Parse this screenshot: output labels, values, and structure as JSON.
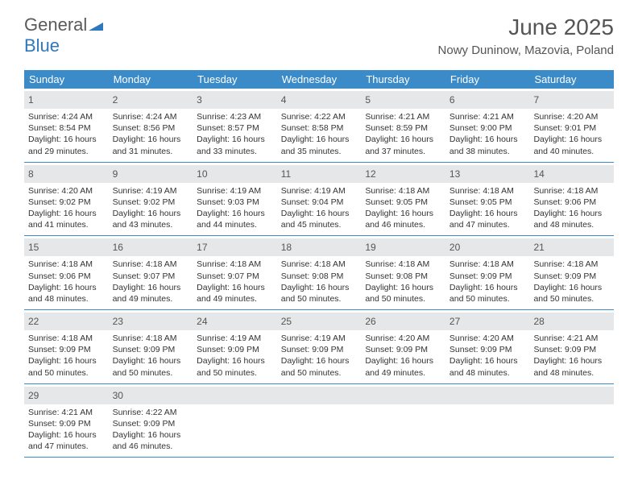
{
  "logo": {
    "part1": "General",
    "part2": "Blue"
  },
  "title": "June 2025",
  "location": "Nowy Duninow, Mazovia, Poland",
  "colors": {
    "header_bg": "#3b8bc9",
    "daynum_bg": "#e6e7e8",
    "border": "#3b8bc9",
    "logo_gray": "#5a5a5a",
    "logo_blue": "#2f78bd"
  },
  "daysOfWeek": [
    "Sunday",
    "Monday",
    "Tuesday",
    "Wednesday",
    "Thursday",
    "Friday",
    "Saturday"
  ],
  "weeks": [
    [
      {
        "n": "1",
        "sr": "Sunrise: 4:24 AM",
        "ss": "Sunset: 8:54 PM",
        "d1": "Daylight: 16 hours",
        "d2": "and 29 minutes."
      },
      {
        "n": "2",
        "sr": "Sunrise: 4:24 AM",
        "ss": "Sunset: 8:56 PM",
        "d1": "Daylight: 16 hours",
        "d2": "and 31 minutes."
      },
      {
        "n": "3",
        "sr": "Sunrise: 4:23 AM",
        "ss": "Sunset: 8:57 PM",
        "d1": "Daylight: 16 hours",
        "d2": "and 33 minutes."
      },
      {
        "n": "4",
        "sr": "Sunrise: 4:22 AM",
        "ss": "Sunset: 8:58 PM",
        "d1": "Daylight: 16 hours",
        "d2": "and 35 minutes."
      },
      {
        "n": "5",
        "sr": "Sunrise: 4:21 AM",
        "ss": "Sunset: 8:59 PM",
        "d1": "Daylight: 16 hours",
        "d2": "and 37 minutes."
      },
      {
        "n": "6",
        "sr": "Sunrise: 4:21 AM",
        "ss": "Sunset: 9:00 PM",
        "d1": "Daylight: 16 hours",
        "d2": "and 38 minutes."
      },
      {
        "n": "7",
        "sr": "Sunrise: 4:20 AM",
        "ss": "Sunset: 9:01 PM",
        "d1": "Daylight: 16 hours",
        "d2": "and 40 minutes."
      }
    ],
    [
      {
        "n": "8",
        "sr": "Sunrise: 4:20 AM",
        "ss": "Sunset: 9:02 PM",
        "d1": "Daylight: 16 hours",
        "d2": "and 41 minutes."
      },
      {
        "n": "9",
        "sr": "Sunrise: 4:19 AM",
        "ss": "Sunset: 9:02 PM",
        "d1": "Daylight: 16 hours",
        "d2": "and 43 minutes."
      },
      {
        "n": "10",
        "sr": "Sunrise: 4:19 AM",
        "ss": "Sunset: 9:03 PM",
        "d1": "Daylight: 16 hours",
        "d2": "and 44 minutes."
      },
      {
        "n": "11",
        "sr": "Sunrise: 4:19 AM",
        "ss": "Sunset: 9:04 PM",
        "d1": "Daylight: 16 hours",
        "d2": "and 45 minutes."
      },
      {
        "n": "12",
        "sr": "Sunrise: 4:18 AM",
        "ss": "Sunset: 9:05 PM",
        "d1": "Daylight: 16 hours",
        "d2": "and 46 minutes."
      },
      {
        "n": "13",
        "sr": "Sunrise: 4:18 AM",
        "ss": "Sunset: 9:05 PM",
        "d1": "Daylight: 16 hours",
        "d2": "and 47 minutes."
      },
      {
        "n": "14",
        "sr": "Sunrise: 4:18 AM",
        "ss": "Sunset: 9:06 PM",
        "d1": "Daylight: 16 hours",
        "d2": "and 48 minutes."
      }
    ],
    [
      {
        "n": "15",
        "sr": "Sunrise: 4:18 AM",
        "ss": "Sunset: 9:06 PM",
        "d1": "Daylight: 16 hours",
        "d2": "and 48 minutes."
      },
      {
        "n": "16",
        "sr": "Sunrise: 4:18 AM",
        "ss": "Sunset: 9:07 PM",
        "d1": "Daylight: 16 hours",
        "d2": "and 49 minutes."
      },
      {
        "n": "17",
        "sr": "Sunrise: 4:18 AM",
        "ss": "Sunset: 9:07 PM",
        "d1": "Daylight: 16 hours",
        "d2": "and 49 minutes."
      },
      {
        "n": "18",
        "sr": "Sunrise: 4:18 AM",
        "ss": "Sunset: 9:08 PM",
        "d1": "Daylight: 16 hours",
        "d2": "and 50 minutes."
      },
      {
        "n": "19",
        "sr": "Sunrise: 4:18 AM",
        "ss": "Sunset: 9:08 PM",
        "d1": "Daylight: 16 hours",
        "d2": "and 50 minutes."
      },
      {
        "n": "20",
        "sr": "Sunrise: 4:18 AM",
        "ss": "Sunset: 9:09 PM",
        "d1": "Daylight: 16 hours",
        "d2": "and 50 minutes."
      },
      {
        "n": "21",
        "sr": "Sunrise: 4:18 AM",
        "ss": "Sunset: 9:09 PM",
        "d1": "Daylight: 16 hours",
        "d2": "and 50 minutes."
      }
    ],
    [
      {
        "n": "22",
        "sr": "Sunrise: 4:18 AM",
        "ss": "Sunset: 9:09 PM",
        "d1": "Daylight: 16 hours",
        "d2": "and 50 minutes."
      },
      {
        "n": "23",
        "sr": "Sunrise: 4:18 AM",
        "ss": "Sunset: 9:09 PM",
        "d1": "Daylight: 16 hours",
        "d2": "and 50 minutes."
      },
      {
        "n": "24",
        "sr": "Sunrise: 4:19 AM",
        "ss": "Sunset: 9:09 PM",
        "d1": "Daylight: 16 hours",
        "d2": "and 50 minutes."
      },
      {
        "n": "25",
        "sr": "Sunrise: 4:19 AM",
        "ss": "Sunset: 9:09 PM",
        "d1": "Daylight: 16 hours",
        "d2": "and 50 minutes."
      },
      {
        "n": "26",
        "sr": "Sunrise: 4:20 AM",
        "ss": "Sunset: 9:09 PM",
        "d1": "Daylight: 16 hours",
        "d2": "and 49 minutes."
      },
      {
        "n": "27",
        "sr": "Sunrise: 4:20 AM",
        "ss": "Sunset: 9:09 PM",
        "d1": "Daylight: 16 hours",
        "d2": "and 48 minutes."
      },
      {
        "n": "28",
        "sr": "Sunrise: 4:21 AM",
        "ss": "Sunset: 9:09 PM",
        "d1": "Daylight: 16 hours",
        "d2": "and 48 minutes."
      }
    ],
    [
      {
        "n": "29",
        "sr": "Sunrise: 4:21 AM",
        "ss": "Sunset: 9:09 PM",
        "d1": "Daylight: 16 hours",
        "d2": "and 47 minutes."
      },
      {
        "n": "30",
        "sr": "Sunrise: 4:22 AM",
        "ss": "Sunset: 9:09 PM",
        "d1": "Daylight: 16 hours",
        "d2": "and 46 minutes."
      },
      {
        "empty": true
      },
      {
        "empty": true
      },
      {
        "empty": true
      },
      {
        "empty": true
      },
      {
        "empty": true
      }
    ]
  ]
}
